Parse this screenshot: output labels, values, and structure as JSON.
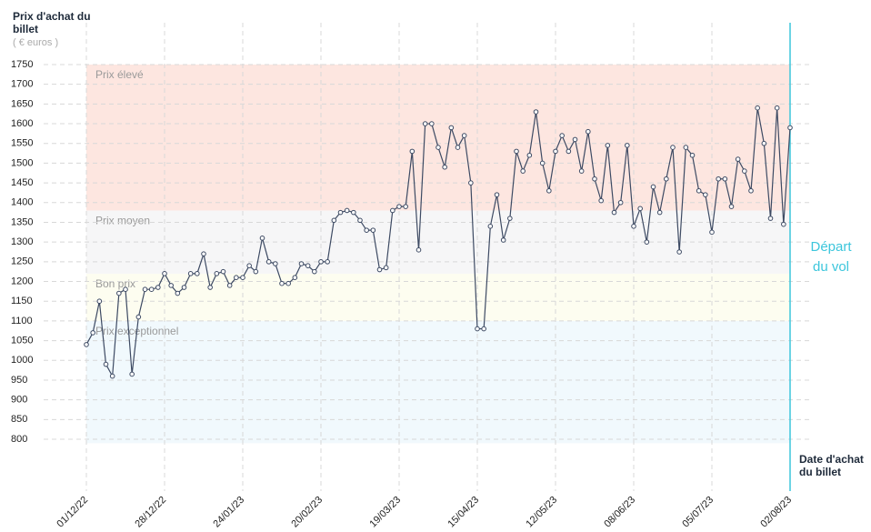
{
  "chart_data": {
    "type": "line",
    "y_label": "Prix d'achat du billet",
    "y_unit": "( € euros )",
    "x_label": "Date d'achat du billet",
    "annotation": "Départ du vol",
    "annotation_color": "#3cc6dc",
    "categories": [
      "01/12/22",
      null,
      null,
      null,
      null,
      null,
      null,
      null,
      null,
      null,
      null,
      null,
      "28/12/22",
      null,
      null,
      null,
      null,
      null,
      null,
      null,
      null,
      null,
      null,
      null,
      "24/01/23",
      null,
      null,
      null,
      null,
      null,
      null,
      null,
      null,
      null,
      null,
      null,
      "20/02/23",
      null,
      null,
      null,
      null,
      null,
      null,
      null,
      null,
      null,
      null,
      null,
      "19/03/23",
      null,
      null,
      null,
      null,
      null,
      null,
      null,
      null,
      null,
      null,
      null,
      "15/04/23",
      null,
      null,
      null,
      null,
      null,
      null,
      null,
      null,
      null,
      null,
      null,
      "12/05/23",
      null,
      null,
      null,
      null,
      null,
      null,
      null,
      null,
      null,
      null,
      null,
      "08/06/23",
      null,
      null,
      null,
      null,
      null,
      null,
      null,
      null,
      null,
      null,
      null,
      "05/07/23",
      null,
      null,
      null,
      null,
      null,
      null,
      null,
      null,
      null,
      null,
      null,
      "02/08/23"
    ],
    "series": [
      {
        "color": "#3d4a63",
        "values": [
          1040,
          1070,
          1150,
          990,
          960,
          1170,
          1180,
          965,
          1110,
          1180,
          1180,
          1185,
          1220,
          1190,
          1170,
          1185,
          1220,
          1220,
          1270,
          1185,
          1220,
          1225,
          1190,
          1210,
          1210,
          1240,
          1225,
          1310,
          1250,
          1245,
          1195,
          1195,
          1210,
          1245,
          1240,
          1225,
          1250,
          1250,
          1355,
          1375,
          1380,
          1375,
          1355,
          1330,
          1330,
          1230,
          1235,
          1380,
          1390,
          1390,
          1530,
          1280,
          1600,
          1600,
          1540,
          1490,
          1590,
          1540,
          1570,
          1450,
          1080,
          1080,
          1340,
          1420,
          1305,
          1360,
          1530,
          1480,
          1520,
          1630,
          1500,
          1430,
          1530,
          1570,
          1530,
          1560,
          1480,
          1580,
          1460,
          1405,
          1545,
          1375,
          1400,
          1545,
          1340,
          1385,
          1300,
          1440,
          1375,
          1460,
          1540,
          1275,
          1540,
          1520,
          1430,
          1420,
          1325,
          1460,
          1460,
          1390,
          1510,
          1480,
          1430,
          1640,
          1550,
          1360,
          1640,
          1345,
          1590
        ]
      }
    ],
    "bands": [
      {
        "name": "Prix exceptionnel",
        "from": 790,
        "to": 1100,
        "color": "#f1f9fd"
      },
      {
        "name": "Bon prix",
        "from": 1100,
        "to": 1220,
        "color": "#fdfdf0"
      },
      {
        "name": "Prix moyen",
        "from": 1220,
        "to": 1380,
        "color": "#f6f6f7"
      },
      {
        "name": "Prix élevé",
        "from": 1380,
        "to": 1750,
        "color": "#fde6e0"
      }
    ],
    "ylim": [
      790,
      1770
    ],
    "yticks": [
      800,
      850,
      900,
      950,
      1000,
      1050,
      1100,
      1150,
      1200,
      1250,
      1300,
      1350,
      1400,
      1450,
      1500,
      1550,
      1600,
      1650,
      1700,
      1750
    ],
    "grid": true
  }
}
